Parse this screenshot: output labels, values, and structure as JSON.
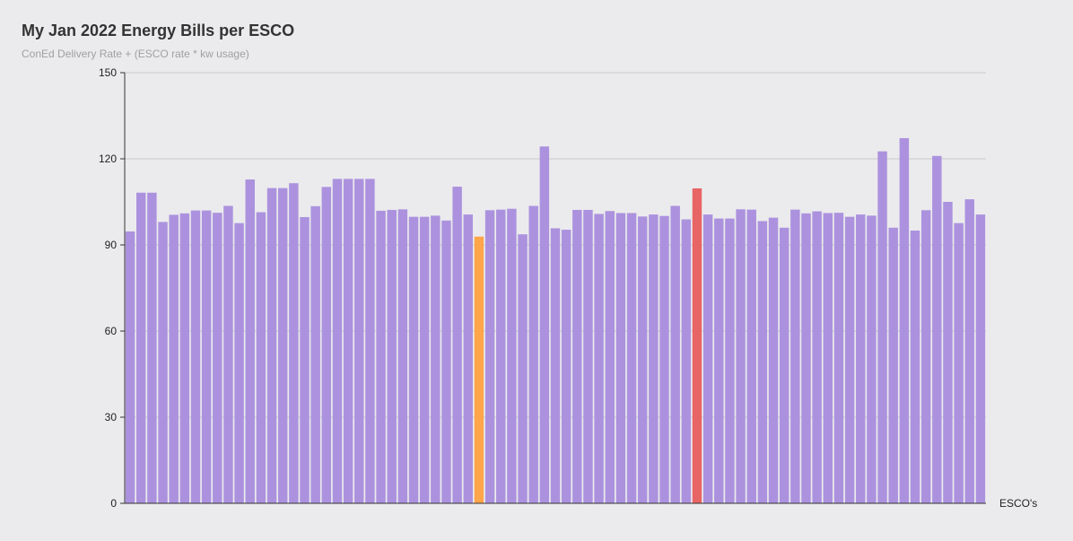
{
  "chart_data": {
    "type": "bar",
    "title": "My Jan 2022 Energy Bills per ESCO",
    "subtitle": "ConEd Delivery Rate + (ESCO rate * kw usage)",
    "xlabel": "ESCO's",
    "ylabel": "",
    "ylim": [
      0,
      150
    ],
    "yticks": [
      0,
      30,
      60,
      90,
      120,
      150
    ],
    "grid": true,
    "colors": {
      "default": "#ac92de",
      "highlight_low": "#ffa54a",
      "highlight_current": "#e86565",
      "grid": "#c8c8c8",
      "axis": "#333333",
      "background": "#ebebed"
    },
    "highlights": [
      {
        "index": 32,
        "color": "#ffa54a"
      },
      {
        "index": 52,
        "color": "#e86565"
      }
    ],
    "values": [
      94.7,
      108.2,
      108.2,
      98.0,
      100.5,
      101.0,
      102.0,
      102.0,
      101.2,
      103.6,
      97.6,
      112.8,
      101.4,
      109.8,
      109.8,
      111.5,
      99.7,
      103.5,
      110.2,
      113.0,
      113.0,
      113.0,
      113.0,
      101.9,
      102.2,
      102.4,
      99.8,
      99.8,
      100.2,
      98.5,
      110.3,
      100.6,
      92.9,
      102.1,
      102.3,
      102.6,
      93.7,
      103.6,
      124.3,
      95.8,
      95.3,
      102.2,
      102.2,
      100.8,
      101.8,
      101.1,
      101.1,
      99.9,
      100.6,
      100.1,
      103.6,
      98.9,
      109.7,
      100.6,
      99.2,
      99.2,
      102.4,
      102.3,
      98.3,
      99.5,
      96.0,
      102.3,
      101.0,
      101.7,
      101.1,
      101.2,
      99.8,
      100.6,
      100.2,
      122.6,
      96.0,
      127.2,
      95.0,
      102.1,
      121.0,
      105.0,
      97.6,
      105.9,
      100.6
    ]
  }
}
